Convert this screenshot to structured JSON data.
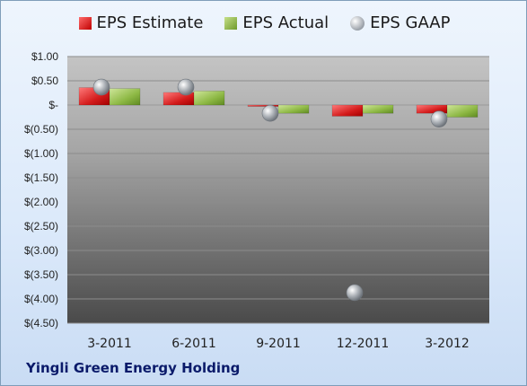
{
  "chart_data": {
    "type": "bar",
    "title": "",
    "xlabel": "",
    "ylabel": "",
    "categories": [
      "3-2011",
      "6-2011",
      "9-2011",
      "12-2011",
      "3-2012"
    ],
    "series": [
      {
        "name": "EPS Estimate",
        "type": "bar",
        "color": "#d61f1f",
        "values": [
          0.36,
          0.26,
          -0.01,
          -0.23,
          -0.17
        ]
      },
      {
        "name": "EPS Actual",
        "type": "bar",
        "color": "#8db844",
        "values": [
          0.34,
          0.29,
          -0.17,
          -0.17,
          -0.25
        ]
      },
      {
        "name": "EPS GAAP",
        "type": "scatter",
        "color": "#a8adb3",
        "values": [
          0.37,
          0.37,
          -0.17,
          -3.87,
          -0.29
        ]
      }
    ],
    "ylim": [
      -4.5,
      1.0
    ],
    "yticks": [
      1.0,
      0.5,
      0,
      -0.5,
      -1.0,
      -1.5,
      -2.0,
      -2.5,
      -3.0,
      -3.5,
      -4.0,
      -4.5
    ],
    "ytick_labels": [
      "$1.00",
      "$0.50",
      "$-",
      "$(0.50)",
      "$(1.00)",
      "$(1.50)",
      "$(2.00)",
      "$(2.50)",
      "$(3.00)",
      "$(3.50)",
      "$(4.00)",
      "$(4.50)"
    ],
    "grid": true,
    "legend_position": "top"
  },
  "company_name": "Yingli Green Energy Holding"
}
